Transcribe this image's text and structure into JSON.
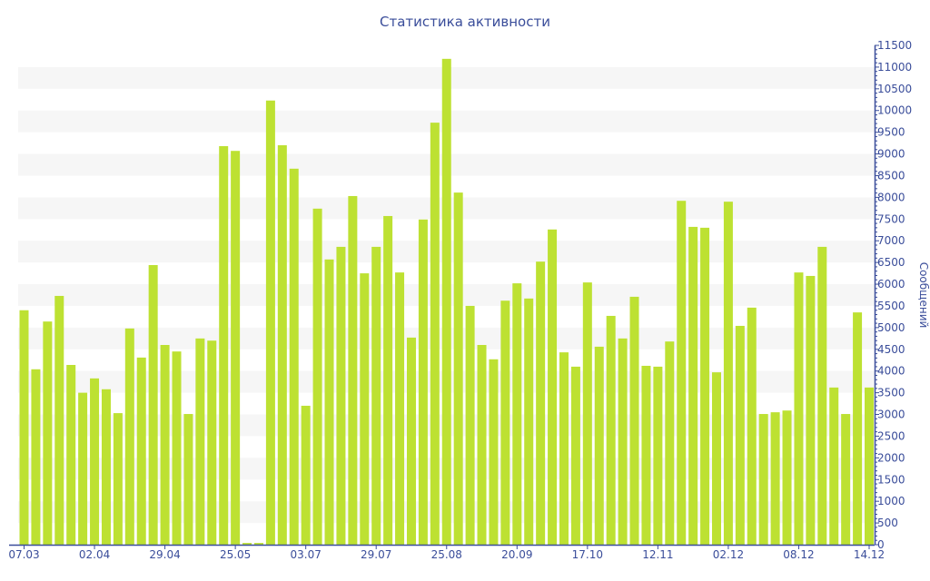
{
  "chart_data": {
    "type": "bar",
    "title": "Статистика активности",
    "xlabel": "",
    "ylabel": "Сообщений",
    "ylim": [
      0,
      11500
    ],
    "y_tick_step": 500,
    "grid": "alternating horizontal bands",
    "y_axis_side": "right",
    "x_tick_labels": [
      "07.03",
      "02.04",
      "29.04",
      "25.05",
      "03.07",
      "29.07",
      "25.08",
      "20.09",
      "17.10",
      "12.11",
      "02.12",
      "08.12",
      "14.12"
    ],
    "x_tick_every": 6,
    "values": [
      5400,
      4040,
      5140,
      5730,
      4140,
      3500,
      3830,
      3580,
      3030,
      4980,
      4310,
      6440,
      4600,
      4450,
      3010,
      4750,
      4700,
      9180,
      9070,
      40,
      40,
      10230,
      9200,
      8660,
      3200,
      7740,
      6570,
      6860,
      8030,
      6250,
      6860,
      7570,
      6270,
      4770,
      7490,
      9720,
      11190,
      8110,
      5500,
      4600,
      4270,
      5620,
      6020,
      5670,
      6520,
      7260,
      4430,
      4100,
      6040,
      4560,
      5270,
      4750,
      5710,
      4120,
      4100,
      4680,
      7920,
      7320,
      7300,
      3970,
      7900,
      5040,
      5460,
      3010,
      3050,
      3090,
      6270,
      6190,
      6860,
      3620,
      3010,
      5350,
      3620
    ],
    "colors": {
      "bar": "#bde132",
      "axis": "#3a4d9a",
      "band": "#f6f6f6"
    }
  }
}
